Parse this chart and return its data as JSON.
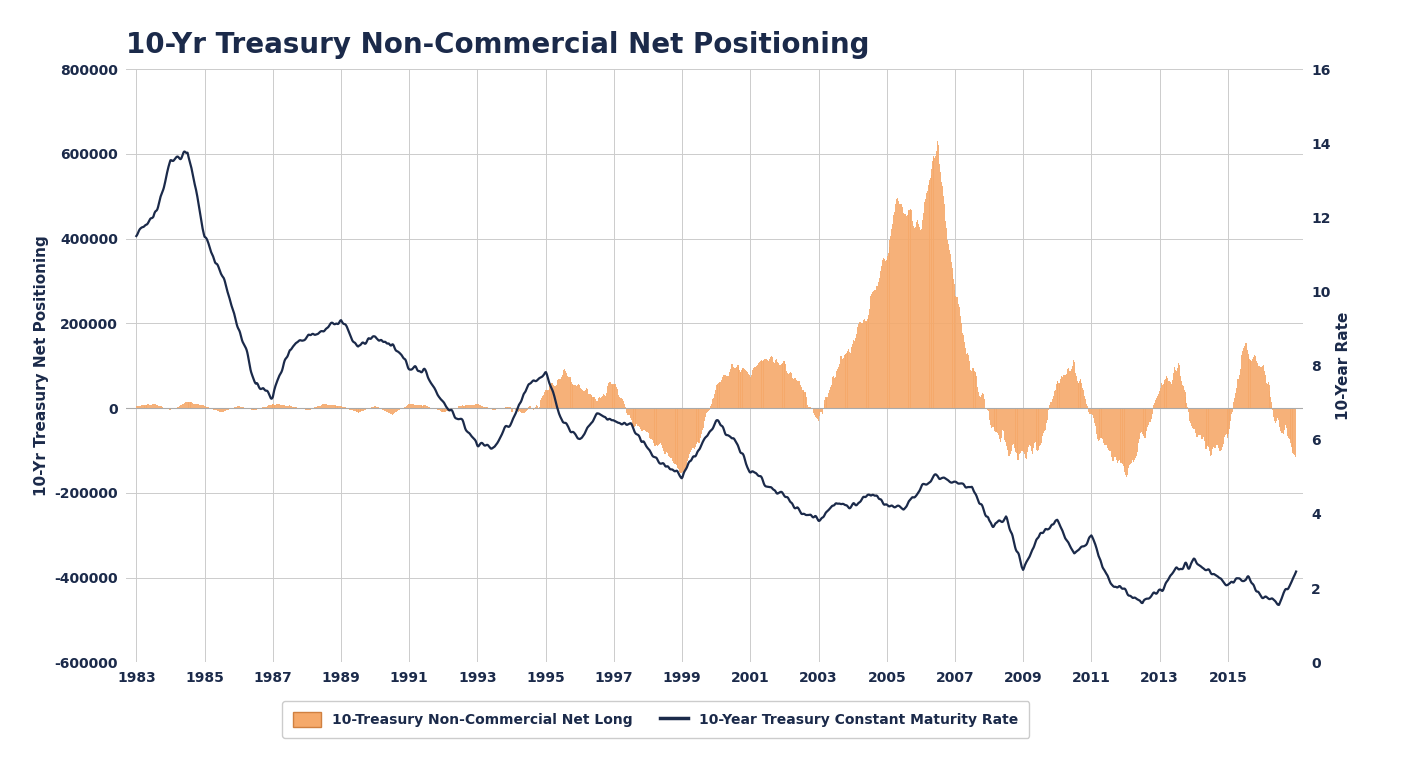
{
  "title": "10-Yr Treasury Non-Commercial Net Positioning",
  "ylabel_left": "10-Yr Treasury Net Positioning",
  "ylabel_right": "10-Year Rate",
  "legend_bar": "10-Treasury Non-Commercial Net Long",
  "legend_line": "10-Year Treasury Constant Maturity Rate",
  "xlim": [
    1982.7,
    2017.2
  ],
  "ylim_left": [
    -600000,
    800000
  ],
  "ylim_right": [
    0,
    16
  ],
  "yticks_left": [
    -600000,
    -400000,
    -200000,
    0,
    200000,
    400000,
    600000,
    800000
  ],
  "yticks_right": [
    0,
    2,
    4,
    6,
    8,
    10,
    12,
    14,
    16
  ],
  "xticks": [
    1983,
    1985,
    1987,
    1989,
    1991,
    1993,
    1995,
    1997,
    1999,
    2001,
    2003,
    2005,
    2007,
    2009,
    2011,
    2013,
    2015
  ],
  "bar_color": "#F5A96A",
  "line_color": "#1B2A4A",
  "background_color": "#FFFFFF",
  "title_color": "#1B2A4A",
  "axis_color": "#1B2A4A",
  "grid_color": "#CCCCCC",
  "title_fontsize": 20,
  "label_fontsize": 11,
  "tick_fontsize": 10
}
